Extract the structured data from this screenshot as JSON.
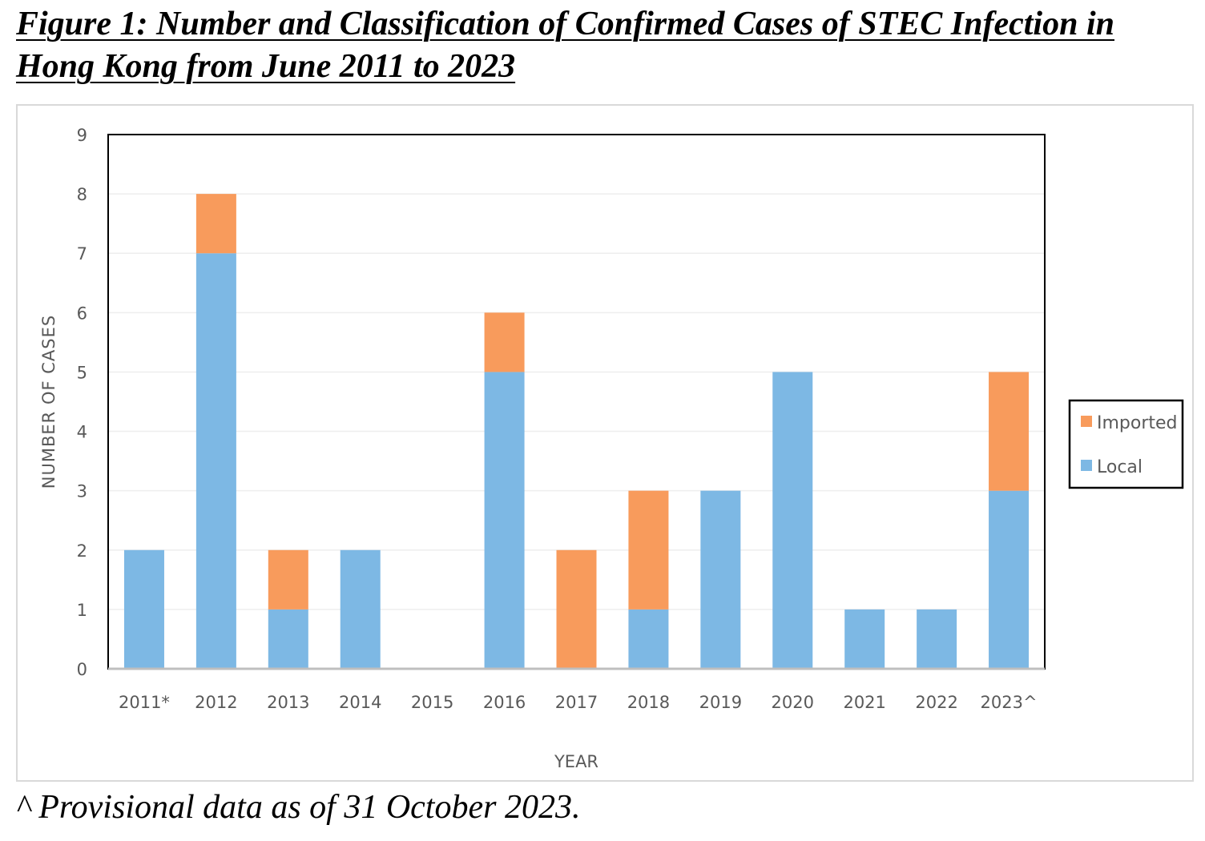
{
  "figure": {
    "title": "Figure 1: Number and Classification of Confirmed Cases of STEC Infection in Hong Kong from June 2011 to 2023",
    "footnote": "^ Provisional data as of 31 October 2023."
  },
  "chart_data": {
    "type": "bar",
    "stacked": true,
    "categories": [
      "2011*",
      "2012",
      "2013",
      "2014",
      "2015",
      "2016",
      "2017",
      "2018",
      "2019",
      "2020",
      "2021",
      "2022",
      "2023^"
    ],
    "series": [
      {
        "name": "Local",
        "color": "#7db8e4",
        "values": [
          2,
          7,
          1,
          2,
          0,
          5,
          0,
          1,
          3,
          5,
          1,
          1,
          3
        ]
      },
      {
        "name": "Imported",
        "color": "#f89b5c",
        "values": [
          0,
          1,
          1,
          0,
          0,
          1,
          2,
          2,
          0,
          0,
          0,
          0,
          2
        ]
      }
    ],
    "xlabel": "YEAR",
    "ylabel": "NUMBER OF CASES",
    "ylim": [
      0,
      9
    ],
    "yticks": [
      "0",
      "1",
      "2",
      "3",
      "4",
      "5",
      "6",
      "7",
      "8",
      "9"
    ],
    "grid": true,
    "legend": {
      "position": "right",
      "entries": [
        "Imported",
        "Local"
      ]
    }
  }
}
